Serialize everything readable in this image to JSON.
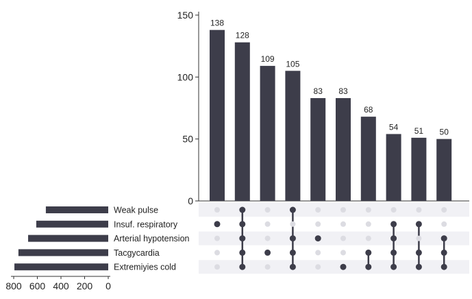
{
  "chart_data": {
    "type": "upset",
    "intersections": {
      "values": [
        138,
        128,
        109,
        105,
        83,
        83,
        68,
        54,
        51,
        50
      ],
      "members": [
        [
          "Insuf. respiratory"
        ],
        [
          "Weak pulse",
          "Insuf. respiratory",
          "Arterial hypotension",
          "Tacgycardia",
          "Extremiyies cold"
        ],
        [
          "Tacgycardia"
        ],
        [
          "Weak pulse",
          "Arterial hypotension",
          "Tacgycardia",
          "Extremiyies cold"
        ],
        [
          "Arterial hypotension"
        ],
        [
          "Extremiyies cold"
        ],
        [
          "Tacgycardia",
          "Extremiyies cold"
        ],
        [
          "Insuf. respiratory",
          "Arterial hypotension",
          "Tacgycardia",
          "Extremiyies cold"
        ],
        [
          "Insuf. respiratory",
          "Tacgycardia",
          "Extremiyies cold"
        ],
        [
          "Arterial hypotension",
          "Tacgycardia",
          "Extremiyies cold"
        ]
      ],
      "ylim": [
        0,
        150
      ],
      "yticks": [
        0,
        50,
        100,
        150
      ]
    },
    "sets": {
      "names": [
        "Weak pulse",
        "Insuf. respiratory",
        "Arterial hypotension",
        "Tacgycardia",
        "Extremiyies cold"
      ],
      "sizes": [
        528,
        609,
        678,
        760,
        794
      ],
      "xlim": [
        800,
        0
      ],
      "xticks": [
        800,
        600,
        400,
        200,
        0
      ]
    },
    "colors": {
      "bar": "#3d3d4a",
      "dot_on": "#3d3d4a",
      "dot_off": "#dcdce2",
      "stripe": "#f1f1f5"
    }
  }
}
